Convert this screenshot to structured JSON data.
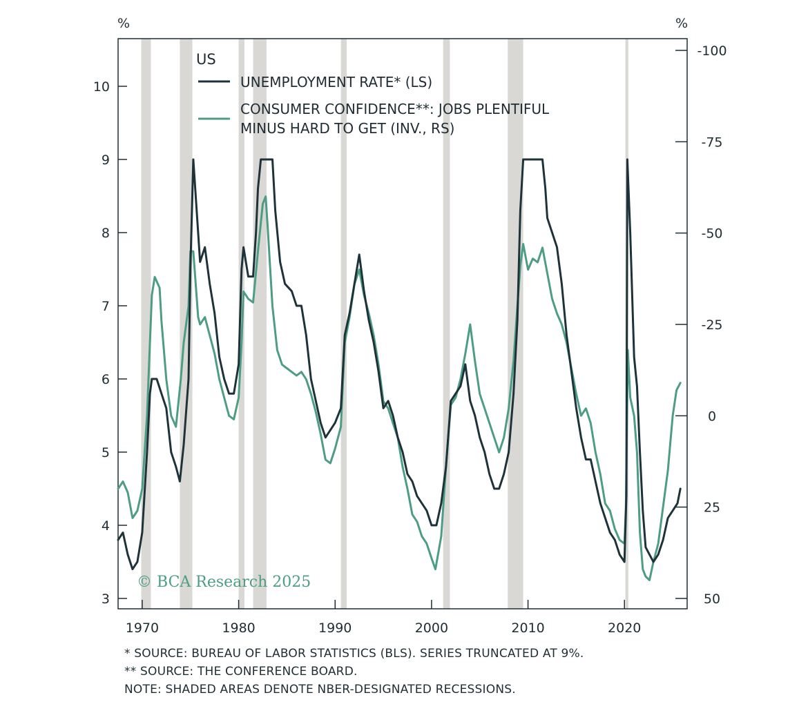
{
  "chart_data": {
    "type": "line",
    "region_label": "US",
    "left_unit": "%",
    "right_unit": "%",
    "left_axis": {
      "range": [
        3,
        10
      ],
      "ticks": [
        "3",
        "4",
        "5",
        "6",
        "7",
        "8",
        "9",
        "10"
      ]
    },
    "right_axis": {
      "range": [
        50,
        -100
      ],
      "inverted": true,
      "ticks": [
        "-100",
        "-75",
        "-50",
        "-25",
        "0",
        "25",
        "50"
      ]
    },
    "x_axis": {
      "range": [
        1967.5,
        2026.5
      ],
      "ticks": [
        "1970",
        "1980",
        "1990",
        "2000",
        "2010",
        "2020"
      ]
    },
    "recessions": [
      [
        1969.9,
        1970.9
      ],
      [
        1973.9,
        1975.2
      ],
      [
        1980.0,
        1980.6
      ],
      [
        1981.5,
        1982.9
      ],
      [
        1990.6,
        1991.2
      ],
      [
        2001.2,
        2001.9
      ],
      [
        2007.9,
        2009.5
      ],
      [
        2020.1,
        2020.4
      ]
    ],
    "legend": [
      {
        "label": "UNEMPLOYMENT RATE* (LS)",
        "color": "#1e3239"
      },
      {
        "label": "CONSUMER CONFIDENCE**: JOBS PLENTIFUL",
        "label2": "MINUS HARD TO GET (INV., RS)",
        "color": "#4c9d84"
      }
    ],
    "series": [
      {
        "name": "UNEMPLOYMENT RATE* (LS)",
        "axis": "left",
        "color": "#1e3239",
        "points": [
          [
            1967.5,
            3.8
          ],
          [
            1968.0,
            3.9
          ],
          [
            1968.5,
            3.6
          ],
          [
            1969.0,
            3.4
          ],
          [
            1969.5,
            3.5
          ],
          [
            1970.0,
            3.9
          ],
          [
            1970.5,
            5.0
          ],
          [
            1970.8,
            5.8
          ],
          [
            1971.0,
            6.0
          ],
          [
            1971.5,
            6.0
          ],
          [
            1972.0,
            5.8
          ],
          [
            1972.5,
            5.6
          ],
          [
            1973.0,
            5.0
          ],
          [
            1973.5,
            4.8
          ],
          [
            1973.9,
            4.6
          ],
          [
            1974.3,
            5.1
          ],
          [
            1974.8,
            6.0
          ],
          [
            1975.0,
            7.5
          ],
          [
            1975.3,
            9.0
          ],
          [
            1975.6,
            8.4
          ],
          [
            1976.0,
            7.6
          ],
          [
            1976.5,
            7.8
          ],
          [
            1977.0,
            7.3
          ],
          [
            1977.5,
            6.9
          ],
          [
            1978.0,
            6.3
          ],
          [
            1978.5,
            6.0
          ],
          [
            1979.0,
            5.8
          ],
          [
            1979.5,
            5.8
          ],
          [
            1980.0,
            6.2
          ],
          [
            1980.3,
            7.5
          ],
          [
            1980.5,
            7.8
          ],
          [
            1981.0,
            7.4
          ],
          [
            1981.5,
            7.4
          ],
          [
            1981.8,
            8.0
          ],
          [
            1982.0,
            8.6
          ],
          [
            1982.3,
            9.0
          ],
          [
            1983.0,
            9.0
          ],
          [
            1983.5,
            9.0
          ],
          [
            1983.8,
            8.3
          ],
          [
            1984.3,
            7.6
          ],
          [
            1984.8,
            7.3
          ],
          [
            1985.5,
            7.2
          ],
          [
            1986.0,
            7.0
          ],
          [
            1986.5,
            7.0
          ],
          [
            1987.0,
            6.6
          ],
          [
            1987.5,
            6.0
          ],
          [
            1988.0,
            5.7
          ],
          [
            1988.5,
            5.4
          ],
          [
            1989.0,
            5.2
          ],
          [
            1989.5,
            5.3
          ],
          [
            1990.0,
            5.4
          ],
          [
            1990.6,
            5.6
          ],
          [
            1991.0,
            6.6
          ],
          [
            1991.5,
            6.9
          ],
          [
            1992.0,
            7.3
          ],
          [
            1992.5,
            7.7
          ],
          [
            1993.0,
            7.2
          ],
          [
            1993.5,
            6.8
          ],
          [
            1994.0,
            6.5
          ],
          [
            1994.5,
            6.1
          ],
          [
            1995.0,
            5.6
          ],
          [
            1995.5,
            5.7
          ],
          [
            1996.0,
            5.5
          ],
          [
            1996.5,
            5.2
          ],
          [
            1997.0,
            5.0
          ],
          [
            1997.5,
            4.7
          ],
          [
            1998.0,
            4.6
          ],
          [
            1998.5,
            4.4
          ],
          [
            1999.0,
            4.3
          ],
          [
            1999.5,
            4.2
          ],
          [
            2000.0,
            4.0
          ],
          [
            2000.5,
            4.0
          ],
          [
            2001.0,
            4.3
          ],
          [
            2001.5,
            4.8
          ],
          [
            2002.0,
            5.7
          ],
          [
            2002.5,
            5.8
          ],
          [
            2003.0,
            5.9
          ],
          [
            2003.5,
            6.2
          ],
          [
            2004.0,
            5.7
          ],
          [
            2004.5,
            5.5
          ],
          [
            2005.0,
            5.2
          ],
          [
            2005.5,
            5.0
          ],
          [
            2006.0,
            4.7
          ],
          [
            2006.5,
            4.5
          ],
          [
            2007.0,
            4.5
          ],
          [
            2007.5,
            4.7
          ],
          [
            2008.0,
            5.0
          ],
          [
            2008.5,
            5.8
          ],
          [
            2008.9,
            6.8
          ],
          [
            2009.2,
            8.3
          ],
          [
            2009.5,
            9.0
          ],
          [
            2010.5,
            9.0
          ],
          [
            2011.0,
            9.0
          ],
          [
            2011.5,
            9.0
          ],
          [
            2011.8,
            8.6
          ],
          [
            2012.0,
            8.2
          ],
          [
            2012.5,
            8.0
          ],
          [
            2013.0,
            7.8
          ],
          [
            2013.5,
            7.3
          ],
          [
            2014.0,
            6.6
          ],
          [
            2014.5,
            6.1
          ],
          [
            2015.0,
            5.6
          ],
          [
            2015.5,
            5.2
          ],
          [
            2016.0,
            4.9
          ],
          [
            2016.5,
            4.9
          ],
          [
            2017.0,
            4.6
          ],
          [
            2017.5,
            4.3
          ],
          [
            2018.0,
            4.1
          ],
          [
            2018.5,
            3.9
          ],
          [
            2019.0,
            3.8
          ],
          [
            2019.5,
            3.6
          ],
          [
            2020.0,
            3.5
          ],
          [
            2020.2,
            4.4
          ],
          [
            2020.3,
            9.0
          ],
          [
            2020.6,
            8.0
          ],
          [
            2021.0,
            6.3
          ],
          [
            2021.3,
            5.9
          ],
          [
            2021.6,
            5.0
          ],
          [
            2021.9,
            4.2
          ],
          [
            2022.2,
            3.7
          ],
          [
            2022.6,
            3.6
          ],
          [
            2023.0,
            3.5
          ],
          [
            2023.5,
            3.6
          ],
          [
            2024.0,
            3.8
          ],
          [
            2024.5,
            4.1
          ],
          [
            2025.0,
            4.2
          ],
          [
            2025.5,
            4.3
          ],
          [
            2025.8,
            4.5
          ]
        ]
      },
      {
        "name": "CONSUMER CONFIDENCE**: JOBS PLENTIFUL MINUS HARD TO GET (INV., RS)",
        "axis": "right",
        "color": "#4c9d84",
        "points": [
          [
            1967.5,
            20
          ],
          [
            1968.0,
            18
          ],
          [
            1968.5,
            21
          ],
          [
            1969.0,
            28
          ],
          [
            1969.5,
            26
          ],
          [
            1970.0,
            20
          ],
          [
            1970.5,
            0
          ],
          [
            1970.8,
            -20
          ],
          [
            1971.0,
            -33
          ],
          [
            1971.3,
            -38
          ],
          [
            1971.8,
            -35
          ],
          [
            1972.0,
            -26
          ],
          [
            1972.5,
            -10
          ],
          [
            1973.0,
            0
          ],
          [
            1973.5,
            3
          ],
          [
            1974.0,
            -10
          ],
          [
            1974.3,
            -20
          ],
          [
            1974.8,
            -30
          ],
          [
            1975.0,
            -45
          ],
          [
            1975.3,
            -45
          ],
          [
            1975.8,
            -27
          ],
          [
            1976.0,
            -25
          ],
          [
            1976.5,
            -27
          ],
          [
            1977.0,
            -22
          ],
          [
            1977.5,
            -17
          ],
          [
            1978.0,
            -10
          ],
          [
            1978.5,
            -5
          ],
          [
            1979.0,
            0
          ],
          [
            1979.5,
            1
          ],
          [
            1980.0,
            -5
          ],
          [
            1980.3,
            -20
          ],
          [
            1980.5,
            -34
          ],
          [
            1981.0,
            -32
          ],
          [
            1981.5,
            -31
          ],
          [
            1982.0,
            -45
          ],
          [
            1982.5,
            -58
          ],
          [
            1982.8,
            -60
          ],
          [
            1983.0,
            -52
          ],
          [
            1983.5,
            -30
          ],
          [
            1984.0,
            -18
          ],
          [
            1984.5,
            -14
          ],
          [
            1985.0,
            -13
          ],
          [
            1985.5,
            -12
          ],
          [
            1986.0,
            -11
          ],
          [
            1986.5,
            -12
          ],
          [
            1987.0,
            -10
          ],
          [
            1987.5,
            -6
          ],
          [
            1988.0,
            -1
          ],
          [
            1988.5,
            5
          ],
          [
            1989.0,
            12
          ],
          [
            1989.5,
            13
          ],
          [
            1990.0,
            9
          ],
          [
            1990.6,
            3
          ],
          [
            1991.0,
            -20
          ],
          [
            1991.5,
            -27
          ],
          [
            1992.0,
            -36
          ],
          [
            1992.5,
            -40
          ],
          [
            1993.0,
            -33
          ],
          [
            1993.5,
            -28
          ],
          [
            1994.0,
            -22
          ],
          [
            1994.5,
            -14
          ],
          [
            1995.0,
            -4
          ],
          [
            1995.5,
            -2
          ],
          [
            1996.0,
            2
          ],
          [
            1996.5,
            6
          ],
          [
            1997.0,
            14
          ],
          [
            1997.5,
            20
          ],
          [
            1998.0,
            27
          ],
          [
            1998.5,
            29
          ],
          [
            1999.0,
            33
          ],
          [
            1999.5,
            35
          ],
          [
            2000.0,
            39
          ],
          [
            2000.4,
            42
          ],
          [
            2001.0,
            33
          ],
          [
            2001.5,
            14
          ],
          [
            2002.0,
            -3
          ],
          [
            2002.5,
            -5
          ],
          [
            2003.0,
            -10
          ],
          [
            2003.5,
            -17
          ],
          [
            2004.0,
            -25
          ],
          [
            2004.5,
            -15
          ],
          [
            2005.0,
            -6
          ],
          [
            2005.5,
            -2
          ],
          [
            2006.0,
            2
          ],
          [
            2006.5,
            6
          ],
          [
            2007.0,
            10
          ],
          [
            2007.5,
            6
          ],
          [
            2008.0,
            -2
          ],
          [
            2008.5,
            -15
          ],
          [
            2008.9,
            -30
          ],
          [
            2009.2,
            -41
          ],
          [
            2009.5,
            -47
          ],
          [
            2010.0,
            -40
          ],
          [
            2010.5,
            -43
          ],
          [
            2011.0,
            -42
          ],
          [
            2011.5,
            -46
          ],
          [
            2012.0,
            -39
          ],
          [
            2012.5,
            -32
          ],
          [
            2013.0,
            -28
          ],
          [
            2013.5,
            -25
          ],
          [
            2014.0,
            -20
          ],
          [
            2014.5,
            -13
          ],
          [
            2015.0,
            -6
          ],
          [
            2015.5,
            0
          ],
          [
            2016.0,
            -2
          ],
          [
            2016.5,
            2
          ],
          [
            2017.0,
            10
          ],
          [
            2017.5,
            16
          ],
          [
            2018.0,
            24
          ],
          [
            2018.5,
            26
          ],
          [
            2019.0,
            31
          ],
          [
            2019.5,
            34
          ],
          [
            2020.0,
            35
          ],
          [
            2020.15,
            25
          ],
          [
            2020.35,
            -18
          ],
          [
            2020.6,
            -5
          ],
          [
            2021.0,
            0
          ],
          [
            2021.3,
            10
          ],
          [
            2021.6,
            32
          ],
          [
            2021.9,
            42
          ],
          [
            2022.2,
            44
          ],
          [
            2022.6,
            45
          ],
          [
            2023.0,
            40
          ],
          [
            2023.5,
            35
          ],
          [
            2024.0,
            25
          ],
          [
            2024.5,
            15
          ],
          [
            2025.0,
            0
          ],
          [
            2025.4,
            -7
          ],
          [
            2025.8,
            -9
          ]
        ]
      }
    ]
  },
  "watermark": "© BCA Research 2025",
  "footnotes": [
    "*  SOURCE: BUREAU OF LABOR STATISTICS (BLS). SERIES TRUNCATED AT 9%.",
    "** SOURCE: THE CONFERENCE BOARD.",
    "NOTE: SHADED AREAS DENOTE NBER-DESIGNATED RECESSIONS."
  ]
}
